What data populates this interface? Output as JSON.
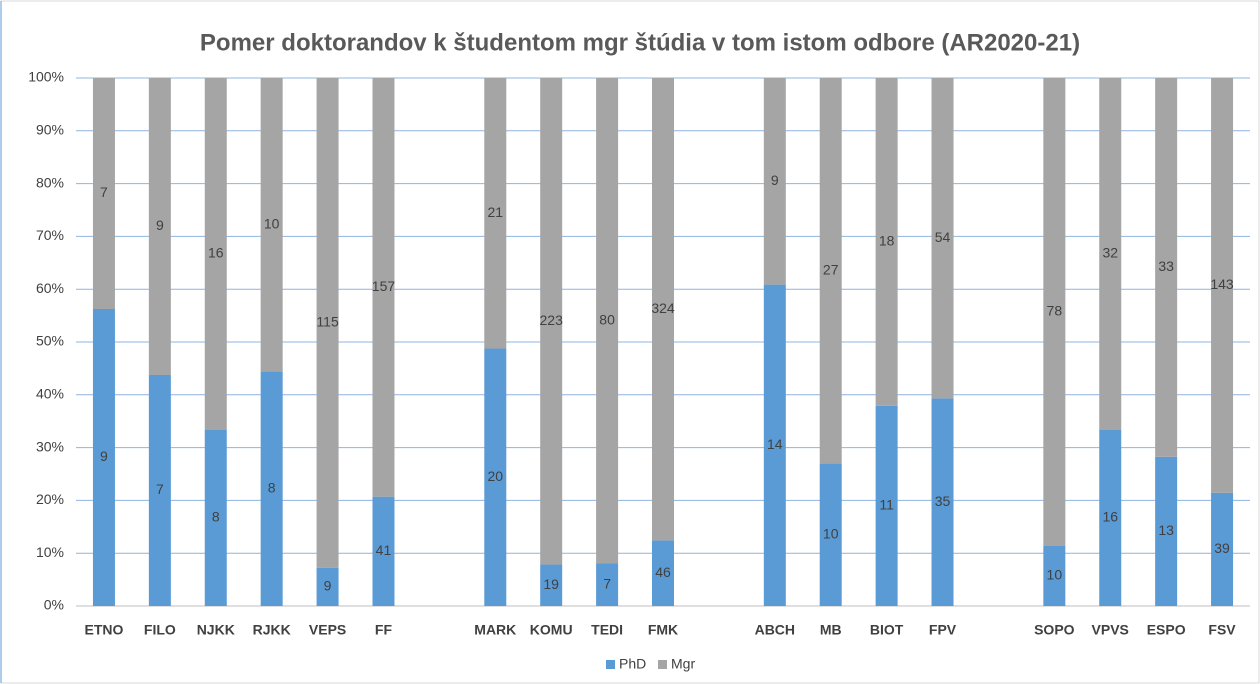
{
  "chart_data": {
    "type": "bar",
    "stacking": "percent",
    "title": "Pomer doktorandov k študentom mgr štúdia v tom istom odbore (AR2020-21)",
    "categories": [
      "ETNO",
      "FILO",
      "NJKK",
      "RJKK",
      "VEPS",
      "FF",
      null,
      "MARK",
      "KOMU",
      "TEDI",
      "FMK",
      null,
      "ABCH",
      "MB",
      "BIOT",
      "FPV",
      null,
      "SOPO",
      "VPVS",
      "ESPO",
      "FSV"
    ],
    "series": [
      {
        "name": "PhD",
        "color": "#5b9bd5",
        "values": [
          9,
          7,
          8,
          8,
          9,
          41,
          null,
          20,
          19,
          7,
          46,
          null,
          14,
          10,
          11,
          35,
          null,
          10,
          16,
          13,
          39
        ]
      },
      {
        "name": "Mgr",
        "color": "#a5a5a5",
        "values": [
          7,
          9,
          16,
          10,
          115,
          157,
          null,
          21,
          223,
          80,
          324,
          null,
          9,
          27,
          18,
          54,
          null,
          78,
          32,
          33,
          143
        ]
      }
    ],
    "ylim": [
      0,
      100
    ],
    "yticks": [
      {
        "value": 0,
        "label": "0%"
      },
      {
        "value": 10,
        "label": "10%"
      },
      {
        "value": 20,
        "label": "20%"
      },
      {
        "value": 30,
        "label": "30%"
      },
      {
        "value": 40,
        "label": "40%"
      },
      {
        "value": 50,
        "label": "50%"
      },
      {
        "value": 60,
        "label": "60%"
      },
      {
        "value": 70,
        "label": "70%"
      },
      {
        "value": 80,
        "label": "80%"
      },
      {
        "value": 90,
        "label": "90%"
      },
      {
        "value": 100,
        "label": "100%"
      }
    ],
    "grid": true,
    "legend": "bottom"
  }
}
